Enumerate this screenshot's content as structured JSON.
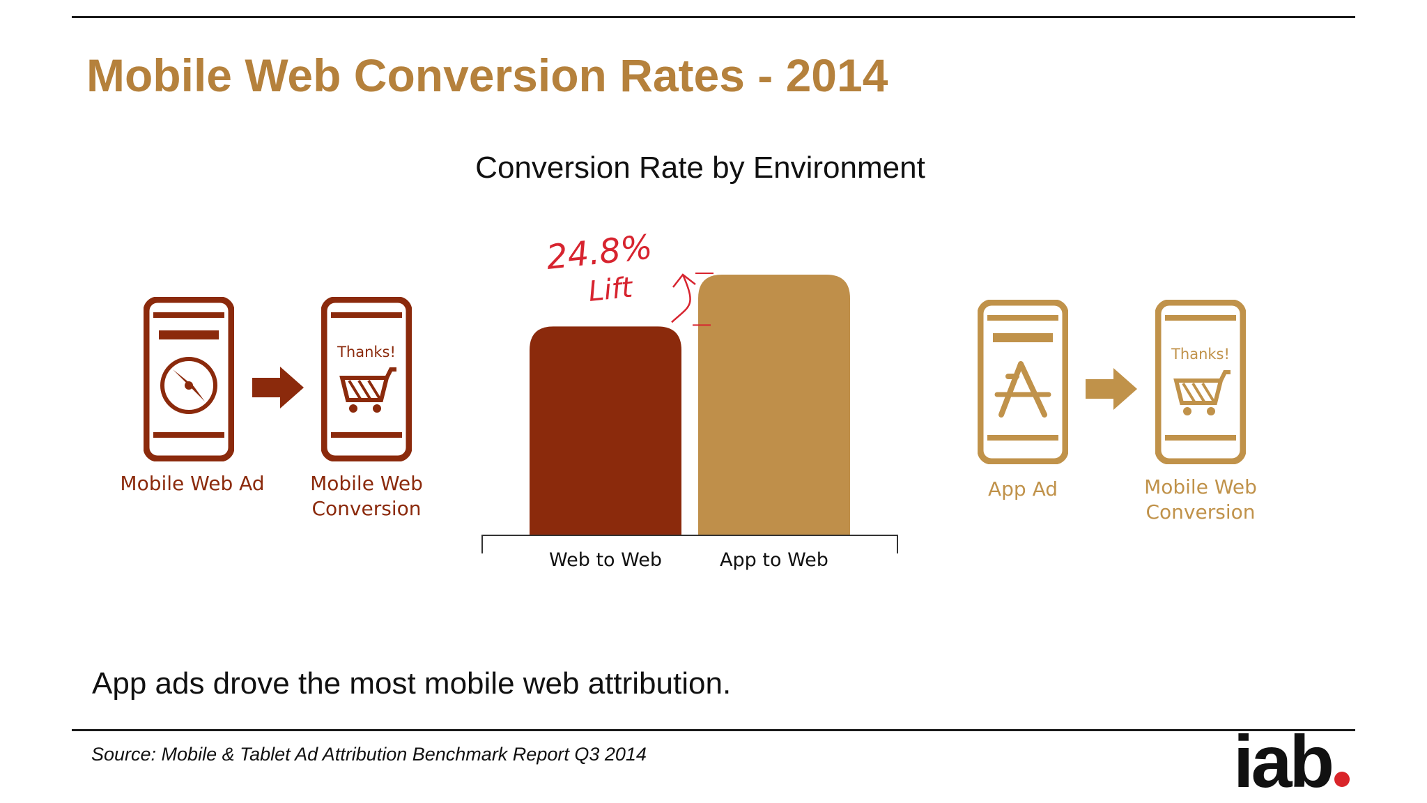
{
  "slide": {
    "title": "Mobile Web Conversion Rates - 2014",
    "takeaway": "App ads drove the most mobile web attribution.",
    "source": "Source: Mobile & Tablet Ad Attribution Benchmark Report Q3 2014",
    "logo": "iab"
  },
  "left_flow": {
    "ad_label_1": "Mobile Web Ad",
    "ad_icon": "compass-icon",
    "conversion_label_1": "Mobile Web",
    "conversion_label_2": "Conversion",
    "thanks": "Thanks!",
    "cart_icon": "shopping-cart-icon",
    "color": "#8b2a0c"
  },
  "right_flow": {
    "ad_label_1": "App Ad",
    "ad_icon": "app-store-icon",
    "conversion_label_1": "Mobile Web",
    "conversion_label_2": "Conversion",
    "thanks": "Thanks!",
    "cart_icon": "shopping-cart-icon",
    "color": "#c0924a"
  },
  "chart_data": {
    "type": "bar",
    "title": "Conversion Rate by Environment",
    "categories": [
      "Web to Web",
      "App to Web"
    ],
    "values": [
      1.0,
      1.248
    ],
    "colors": [
      "#8b2a0c",
      "#bf8f4a"
    ],
    "annotation": {
      "value": "24.8%",
      "label": "Lift"
    }
  }
}
